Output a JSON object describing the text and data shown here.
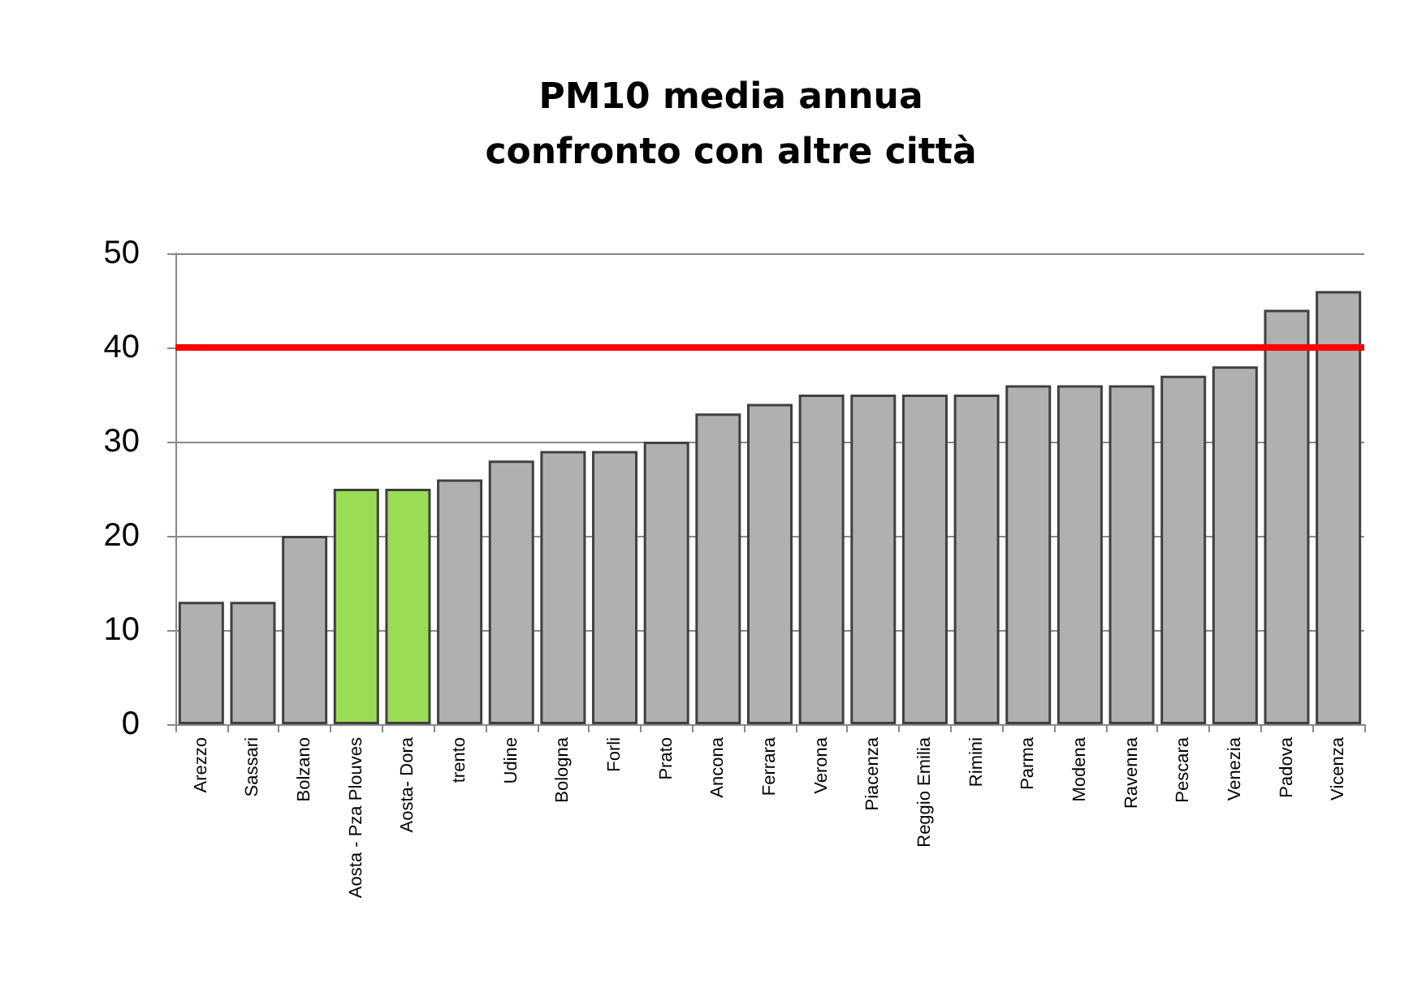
{
  "chart_data": {
    "type": "bar",
    "title": "PM10 media annua\nconfronto con altre città",
    "categories": [
      "Arezzo",
      "Sassari",
      "Bolzano",
      "Aosta - Pza Plouves",
      "Aosta- Dora",
      "trento",
      "Udine",
      "Bologna",
      "Forli",
      "Prato",
      "Ancona",
      "Ferrara",
      "Verona",
      "Piacenza",
      "Reggio Emilia",
      "Rimini",
      "Parma",
      "Modena",
      "Ravenna",
      "Pescara",
      "Venezia",
      "Padova",
      "Vicenza"
    ],
    "values": [
      13,
      13,
      20,
      25,
      25,
      26,
      28,
      29,
      29,
      30,
      33,
      34,
      35,
      35,
      35,
      35,
      36,
      36,
      36,
      37,
      38,
      44,
      46
    ],
    "colors": [
      "#b0b0b0",
      "#b0b0b0",
      "#b0b0b0",
      "#99dd55",
      "#99dd55",
      "#b0b0b0",
      "#b0b0b0",
      "#b0b0b0",
      "#b0b0b0",
      "#b0b0b0",
      "#b0b0b0",
      "#b0b0b0",
      "#b0b0b0",
      "#b0b0b0",
      "#b0b0b0",
      "#b0b0b0",
      "#b0b0b0",
      "#b0b0b0",
      "#b0b0b0",
      "#b0b0b0",
      "#b0b0b0",
      "#b0b0b0",
      "#b0b0b0"
    ],
    "ylim": [
      0,
      50
    ],
    "yticks": [
      0,
      10,
      20,
      30,
      40,
      50
    ],
    "grid": "y",
    "ref_lines": [
      {
        "axis": "y",
        "value": 40,
        "color": "#ff0000"
      }
    ]
  }
}
